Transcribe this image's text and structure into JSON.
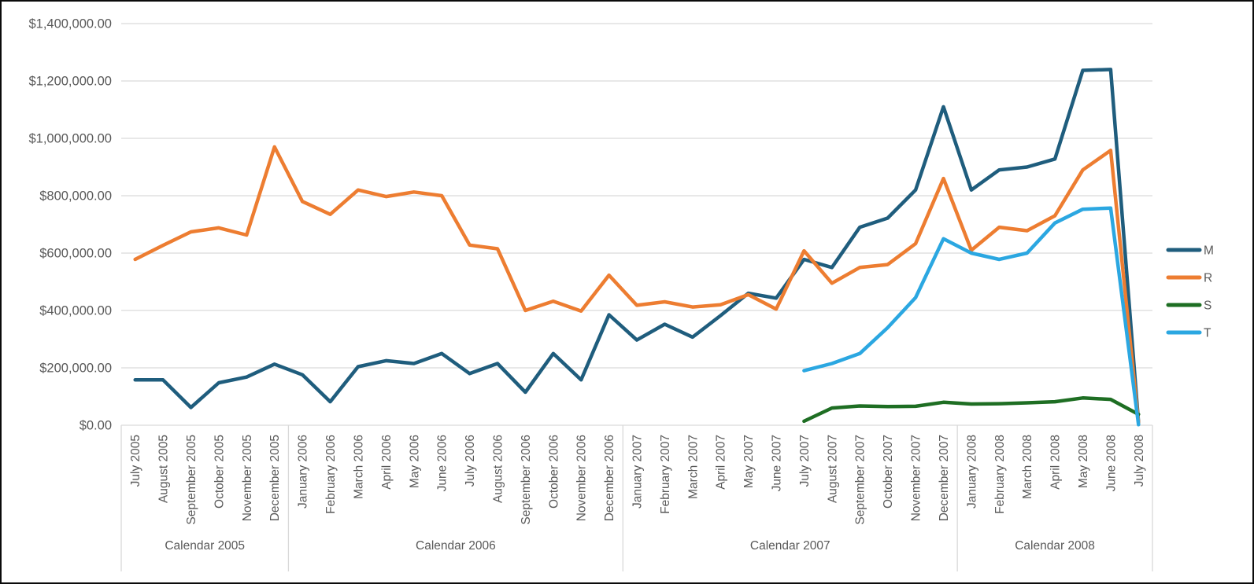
{
  "chart_data": {
    "type": "line",
    "title": "",
    "x_labels": [
      "July 2005",
      "August 2005",
      "September 2005",
      "October 2005",
      "November 2005",
      "December 2005",
      "January 2006",
      "February 2006",
      "March 2006",
      "April 2006",
      "May 2006",
      "June 2006",
      "July 2006",
      "August 2006",
      "September 2006",
      "October 2006",
      "November 2006",
      "December 2006",
      "January 2007",
      "February 2007",
      "March 2007",
      "April 2007",
      "May 2007",
      "June 2007",
      "July 2007",
      "August 2007",
      "September 2007",
      "October 2007",
      "November 2007",
      "December 2007",
      "January 2008",
      "February 2008",
      "March 2008",
      "April 2008",
      "May 2008",
      "June 2008",
      "July 2008"
    ],
    "x_groups": [
      {
        "label": "Calendar 2005",
        "months": 6
      },
      {
        "label": "Calendar 2006",
        "months": 12
      },
      {
        "label": "Calendar 2007",
        "months": 12
      },
      {
        "label": "Calendar 2008",
        "months": 7
      }
    ],
    "y_axis": {
      "min": 0,
      "max": 1400000,
      "step": 200000,
      "tick_labels": [
        "$0.00",
        "$200,000.00",
        "$400,000.00",
        "$600,000.00",
        "$800,000.00",
        "$1,000,000.00",
        "$1,200,000.00",
        "$1,400,000.00"
      ]
    },
    "series": [
      {
        "name": "M",
        "color": "#1F5D7D",
        "values": [
          158000,
          158000,
          62000,
          148000,
          168000,
          213000,
          176000,
          82000,
          204000,
          225000,
          215000,
          250000,
          180000,
          215000,
          115000,
          250000,
          158000,
          385000,
          297000,
          352000,
          307000,
          382000,
          460000,
          443000,
          578000,
          550000,
          690000,
          722000,
          820000,
          1110000,
          820000,
          890000,
          900000,
          928000,
          1237000,
          1240000,
          10000
        ]
      },
      {
        "name": "R",
        "color": "#ED7D31",
        "values": [
          578000,
          627000,
          674000,
          688000,
          663000,
          970000,
          780000,
          735000,
          820000,
          797000,
          813000,
          800000,
          628000,
          615000,
          400000,
          432000,
          398000,
          523000,
          418000,
          430000,
          412000,
          420000,
          455000,
          405000,
          608000,
          495000,
          550000,
          560000,
          633000,
          860000,
          610000,
          690000,
          678000,
          730000,
          890000,
          958000,
          8000
        ]
      },
      {
        "name": "S",
        "color": "#1E6E23",
        "values": [
          null,
          null,
          null,
          null,
          null,
          null,
          null,
          null,
          null,
          null,
          null,
          null,
          null,
          null,
          null,
          null,
          null,
          null,
          null,
          null,
          null,
          null,
          null,
          null,
          14000,
          60000,
          67000,
          65000,
          66000,
          80000,
          74000,
          75000,
          78000,
          82000,
          95000,
          90000,
          38000
        ]
      },
      {
        "name": "T",
        "color": "#2BA7E1",
        "values": [
          null,
          null,
          null,
          null,
          null,
          null,
          null,
          null,
          null,
          null,
          null,
          null,
          null,
          null,
          null,
          null,
          null,
          null,
          null,
          null,
          null,
          null,
          null,
          null,
          190000,
          215000,
          250000,
          340000,
          445000,
          650000,
          600000,
          578000,
          600000,
          705000,
          753000,
          757000,
          2000
        ]
      }
    ],
    "legend": {
      "position": "right",
      "entries": [
        "M",
        "R",
        "S",
        "T"
      ]
    },
    "grid": true
  },
  "style_colors": {
    "gridline": "#D9D9D9",
    "axis_text": "#595959",
    "border": "#0B0B0B",
    "background": "#FFFFFF"
  }
}
